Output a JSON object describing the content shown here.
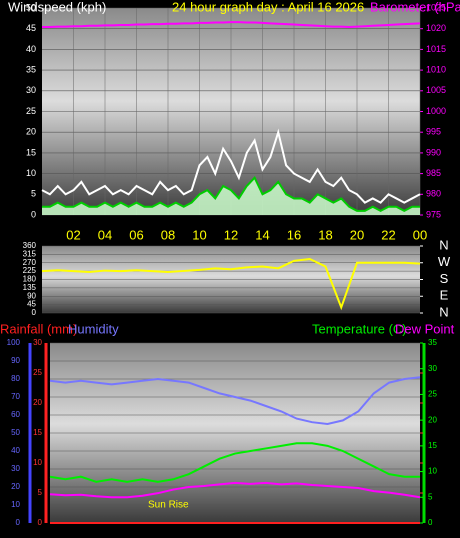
{
  "chart_data": [
    {
      "type": "line",
      "title": "24 hour graph day : April 16 2026",
      "ylabel": "Windspeed (kph)",
      "y2label": "Barometer (hPa)",
      "x": [
        0,
        0.5,
        1,
        1.5,
        2,
        2.5,
        3,
        3.5,
        4,
        4.5,
        5,
        5.5,
        6,
        6.5,
        7,
        7.5,
        8,
        8.5,
        9,
        9.5,
        10,
        10.5,
        11,
        11.5,
        12,
        12.5,
        13,
        13.5,
        14,
        14.5,
        15,
        15.5,
        16,
        16.5,
        17,
        17.5,
        18,
        18.5,
        19,
        19.5,
        20,
        20.5,
        21,
        21.5,
        22,
        22.5,
        23,
        23.5,
        24
      ],
      "xlim": [
        0,
        24
      ],
      "xticks": [
        {
          "value": 2,
          "label": "02"
        },
        {
          "value": 4,
          "label": "04"
        },
        {
          "value": 6,
          "label": "06"
        },
        {
          "value": 8,
          "label": "08"
        },
        10,
        12,
        14,
        16,
        18,
        20,
        22,
        {
          "value": 24,
          "label": "00"
        }
      ],
      "ylim": [
        0,
        50
      ],
      "yticks": [
        0,
        5,
        10,
        15,
        20,
        25,
        30,
        35,
        40,
        45,
        50
      ],
      "y2lim": [
        975,
        1025
      ],
      "y2ticks": [
        975,
        980,
        985,
        990,
        995,
        1000,
        1005,
        1010,
        1015,
        1020,
        1025
      ],
      "grid": true,
      "series": [
        {
          "color": "#ffffff",
          "values": [
            6,
            5,
            7,
            5,
            6,
            8,
            5,
            6,
            7,
            5,
            6,
            5,
            7,
            6,
            5,
            8,
            6,
            7,
            5,
            6,
            12,
            14,
            10,
            16,
            13,
            9,
            15,
            18,
            11,
            14,
            20,
            12,
            10,
            9,
            8,
            11,
            8,
            7,
            9,
            6,
            5,
            3,
            4,
            3,
            5,
            4,
            3,
            4,
            5
          ]
        },
        {
          "color": "#00cc00",
          "fill": "#ccffcc",
          "values": [
            2,
            2,
            3,
            2,
            2,
            3,
            2,
            2,
            3,
            2,
            3,
            2,
            3,
            2,
            2,
            3,
            2,
            3,
            2,
            3,
            5,
            6,
            4,
            7,
            6,
            4,
            7,
            9,
            5,
            6,
            8,
            5,
            4,
            4,
            3,
            5,
            4,
            3,
            4,
            2,
            1,
            1,
            2,
            1,
            2,
            2,
            1,
            2,
            2
          ]
        },
        {
          "color": "#ff00ff",
          "axis": "y2",
          "values": [
            1020.4,
            1020.4,
            1020.5,
            1020.5,
            1020.6,
            1020.6,
            1020.7,
            1020.7,
            1020.8,
            1020.8,
            1020.9,
            1020.9,
            1021.0,
            1021.0,
            1021.1,
            1021.1,
            1021.2,
            1021.2,
            1021.3,
            1021.3,
            1021.4,
            1021.4,
            1021.5,
            1021.5,
            1021.6,
            1021.6,
            1021.5,
            1021.5,
            1021.4,
            1021.3,
            1021.2,
            1021.1,
            1021.0,
            1020.9,
            1020.8,
            1020.7,
            1020.6,
            1020.5,
            1020.5,
            1020.4,
            1020.5,
            1020.6,
            1020.7,
            1020.8,
            1020.9,
            1021.0,
            1021.1,
            1021.2,
            1021.3
          ]
        }
      ]
    },
    {
      "type": "line",
      "x": [
        0,
        1,
        2,
        3,
        4,
        5,
        6,
        7,
        8,
        9,
        10,
        11,
        12,
        13,
        14,
        15,
        16,
        17,
        18,
        19,
        20,
        21,
        22,
        23,
        24
      ],
      "xlim": [
        0,
        24
      ],
      "ylim": [
        0,
        360
      ],
      "yticks": [
        0,
        45,
        90,
        135,
        180,
        225,
        270,
        315,
        360
      ],
      "y2lim": [
        0,
        360
      ],
      "y2ticks": [
        {
          "value": 360,
          "label": "N"
        },
        {
          "value": 270,
          "label": "W"
        },
        {
          "value": 180,
          "label": "S"
        },
        {
          "value": 90,
          "label": "E"
        },
        {
          "value": 0,
          "label": "N"
        }
      ],
      "grid": true,
      "series": [
        {
          "color": "#ffff00",
          "values": [
            225,
            230,
            225,
            220,
            228,
            225,
            230,
            225,
            220,
            226,
            232,
            240,
            235,
            245,
            250,
            240,
            280,
            290,
            250,
            30,
            270,
            270,
            270,
            270,
            265
          ]
        }
      ]
    },
    {
      "type": "line",
      "x": [
        0,
        1,
        2,
        3,
        4,
        5,
        6,
        7,
        8,
        9,
        10,
        11,
        12,
        13,
        14,
        15,
        16,
        17,
        18,
        19,
        20,
        21,
        22,
        23,
        24
      ],
      "xlim": [
        0,
        24
      ],
      "ylim": [
        0,
        100
      ],
      "yticks": [
        0,
        10,
        20,
        30,
        40,
        50,
        60,
        70,
        80,
        90,
        100
      ],
      "y3lim": [
        0,
        30
      ],
      "y3ticks": [
        0,
        5,
        10,
        15,
        20,
        25,
        30
      ],
      "y2lim": [
        0,
        35
      ],
      "y2ticks": [
        0,
        5,
        10,
        15,
        20,
        25,
        30,
        35
      ],
      "grid": true,
      "annotation": "Sun Rise",
      "series": [
        {
          "name": "Rainfall (mm)",
          "color": "#ff2020",
          "axis": "y3",
          "values": [
            0,
            0,
            0,
            0,
            0,
            0,
            0,
            0,
            0,
            0,
            0,
            0,
            0,
            0,
            0,
            0,
            0,
            0,
            0,
            0,
            0,
            0,
            0,
            0,
            0
          ]
        },
        {
          "name": "Humidity",
          "color": "#7777ff",
          "values": [
            79,
            78,
            79,
            78,
            77,
            78,
            79,
            80,
            79,
            78,
            75,
            72,
            70,
            68,
            65,
            62,
            58,
            56,
            55,
            57,
            62,
            72,
            78,
            80,
            81
          ]
        },
        {
          "name": "Temperature (C)",
          "color": "#00ee00",
          "axis": "y2",
          "values": [
            9,
            8.5,
            9,
            8,
            8.5,
            8,
            8.5,
            8,
            8.5,
            9.5,
            11,
            12.5,
            13.5,
            14,
            14.5,
            15,
            15.5,
            15.5,
            15,
            14,
            12.5,
            11,
            9.5,
            9,
            9
          ]
        },
        {
          "name": "Dew Point",
          "color": "#ff00ff",
          "axis": "y2",
          "values": [
            5.6,
            5.4,
            5.5,
            5.2,
            5.0,
            5.0,
            5.3,
            5.8,
            6.5,
            7.0,
            7.2,
            7.5,
            7.8,
            7.6,
            7.8,
            7.5,
            7.7,
            7.4,
            7.2,
            7.0,
            6.8,
            6.2,
            5.9,
            5.5,
            5.0
          ]
        }
      ]
    }
  ]
}
